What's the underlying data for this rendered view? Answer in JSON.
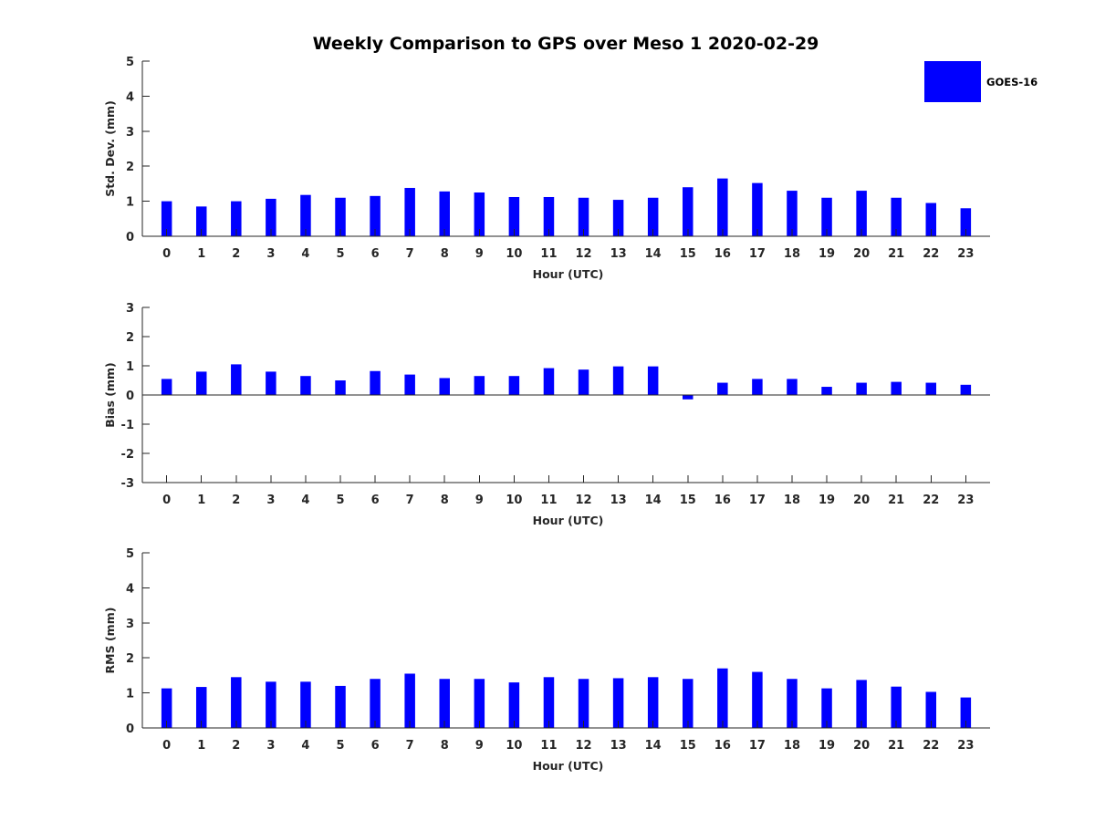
{
  "chart_data": {
    "title": "Weekly Comparison to GPS over Meso 1 2020-02-29",
    "legend": {
      "label": "GOES-16",
      "color": "#0000ff",
      "placement": "top-right"
    },
    "categories": [
      "0",
      "1",
      "2",
      "3",
      "4",
      "5",
      "6",
      "7",
      "8",
      "9",
      "10",
      "11",
      "12",
      "13",
      "14",
      "15",
      "16",
      "17",
      "18",
      "19",
      "20",
      "21",
      "22",
      "23"
    ],
    "panels": [
      {
        "type": "bar",
        "xlabel": "Hour (UTC)",
        "ylabel": "Std. Dev. (mm)",
        "ylim": [
          0,
          5
        ],
        "yticks": [
          "0",
          "1",
          "2",
          "3",
          "4",
          "5"
        ],
        "series": [
          {
            "name": "GOES-16",
            "values": [
              1.0,
              0.85,
              1.0,
              1.07,
              1.18,
              1.1,
              1.15,
              1.38,
              1.28,
              1.25,
              1.12,
              1.12,
              1.1,
              1.04,
              1.1,
              1.4,
              1.65,
              1.52,
              1.3,
              1.1,
              1.3,
              1.1,
              0.95,
              0.8
            ]
          }
        ]
      },
      {
        "type": "bar",
        "xlabel": "Hour (UTC)",
        "ylabel": "Bias (mm)",
        "ylim": [
          -3,
          3
        ],
        "yticks": [
          "-3",
          "-2",
          "-1",
          "0",
          "1",
          "2",
          "3"
        ],
        "series": [
          {
            "name": "GOES-16",
            "values": [
              0.55,
              0.8,
              1.05,
              0.8,
              0.65,
              0.5,
              0.82,
              0.7,
              0.58,
              0.65,
              0.65,
              0.92,
              0.87,
              0.98,
              0.98,
              -0.15,
              0.42,
              0.55,
              0.55,
              0.28,
              0.42,
              0.45,
              0.42,
              0.35
            ]
          }
        ]
      },
      {
        "type": "bar",
        "xlabel": "Hour (UTC)",
        "ylabel": "RMS (mm)",
        "ylim": [
          0,
          5
        ],
        "yticks": [
          "0",
          "1",
          "2",
          "3",
          "4",
          "5"
        ],
        "series": [
          {
            "name": "GOES-16",
            "values": [
              1.13,
              1.17,
              1.45,
              1.32,
              1.32,
              1.2,
              1.4,
              1.55,
              1.4,
              1.4,
              1.3,
              1.45,
              1.4,
              1.42,
              1.45,
              1.4,
              1.7,
              1.6,
              1.4,
              1.13,
              1.37,
              1.18,
              1.03,
              0.87
            ]
          }
        ]
      }
    ]
  }
}
